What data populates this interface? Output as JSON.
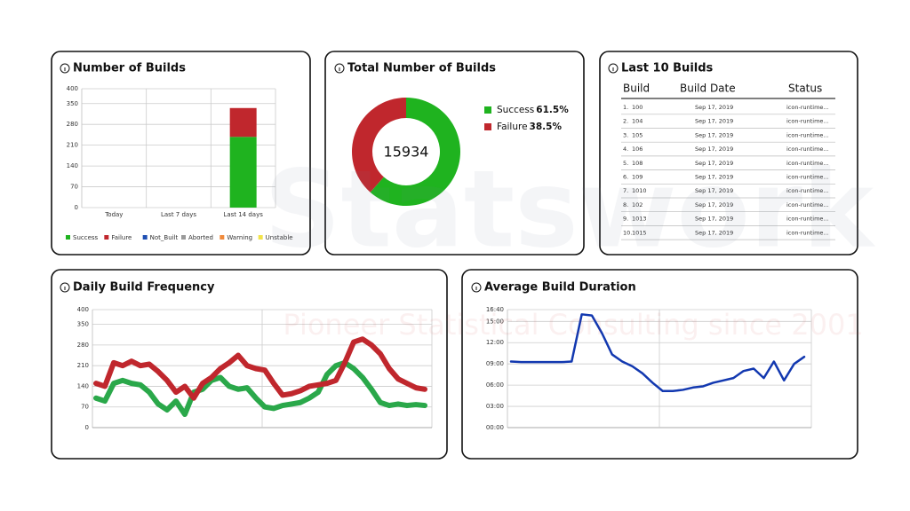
{
  "watermark": {
    "brand": "Statswork",
    "tagline": "Pioneer Statistical Consulting since 2001"
  },
  "chart_data": [
    {
      "type": "stacked_bar",
      "title": "Number of Builds",
      "categories": [
        "Today",
        "Last 7 days",
        "Last 14 days"
      ],
      "series": [
        {
          "name": "Success",
          "color": "#1fb31f",
          "values": [
            0,
            0,
            238
          ]
        },
        {
          "name": "Failure",
          "color": "#c0272d",
          "values": [
            0,
            0,
            97
          ]
        },
        {
          "name": "Not_Built",
          "color": "#1f4fb3",
          "values": [
            0,
            0,
            0
          ]
        },
        {
          "name": "Aborted",
          "color": "#9a9a9a",
          "values": [
            0,
            0,
            0
          ]
        },
        {
          "name": "Warning",
          "color": "#f08a3c",
          "values": [
            0,
            0,
            0
          ]
        },
        {
          "name": "Unstable",
          "color": "#f2e34a",
          "values": [
            0,
            0,
            0
          ]
        }
      ],
      "ylim": [
        0,
        400
      ],
      "yticks": [
        0,
        70,
        140,
        210,
        280,
        350,
        400
      ],
      "grid": true,
      "legend": "bottom"
    },
    {
      "type": "donut",
      "title": "Total Number of Builds",
      "center_label": "15934",
      "categories": [
        "Success",
        "Failure"
      ],
      "values": [
        61.5,
        38.5
      ],
      "value_labels": [
        "61.5%",
        "38.5%"
      ],
      "colors": [
        "#1fb31f",
        "#c0272d"
      ],
      "legend": "right"
    },
    {
      "type": "line",
      "title": "Daily Build Frequency",
      "series": [
        {
          "color": "#c0272d",
          "values": [
            150,
            140,
            220,
            210,
            225,
            210,
            215,
            190,
            160,
            120,
            140,
            100,
            150,
            170,
            200,
            220,
            245,
            210,
            200,
            195,
            150,
            110,
            115,
            125,
            140,
            145,
            150,
            160,
            220,
            290,
            300,
            280,
            250,
            200,
            165,
            150,
            135,
            130
          ]
        },
        {
          "color": "#2aa84a",
          "values": [
            100,
            90,
            150,
            160,
            150,
            145,
            120,
            80,
            60,
            90,
            45,
            120,
            130,
            160,
            170,
            140,
            130,
            135,
            100,
            70,
            65,
            75,
            80,
            85,
            100,
            120,
            180,
            210,
            220,
            200,
            170,
            130,
            85,
            75,
            80,
            75,
            78,
            75
          ]
        }
      ],
      "ylim": [
        0,
        400
      ],
      "yticks": [
        0,
        70,
        140,
        210,
        280,
        350,
        400
      ],
      "grid": true
    },
    {
      "type": "line",
      "title": "Average Build Duration",
      "series": [
        {
          "color": "#1238b0",
          "values": [
            560,
            555,
            555,
            555,
            555,
            555,
            560,
            960,
            950,
            800,
            620,
            560,
            520,
            460,
            380,
            310,
            310,
            320,
            340,
            350,
            380,
            400,
            420,
            480,
            500,
            420,
            560,
            400,
            540,
            600
          ]
        }
      ],
      "ylim": [
        0,
        1000
      ],
      "yticks": [
        {
          "value": 0,
          "label": "00:00"
        },
        {
          "value": 180,
          "label": "03:00"
        },
        {
          "value": 360,
          "label": "06:00"
        },
        {
          "value": 540,
          "label": "09:00"
        },
        {
          "value": 720,
          "label": "12:00"
        },
        {
          "value": 900,
          "label": "15:00"
        },
        {
          "value": 1000,
          "label": "16:40"
        }
      ],
      "grid": true
    }
  ],
  "table": {
    "title": "Last 10 Builds",
    "header": [
      "Build",
      "Build Date",
      "Status"
    ],
    "rows": [
      [
        "1.",
        "100",
        "Sep 17, 2019",
        "icon-runtime..."
      ],
      [
        "2.",
        "104",
        "Sep 17, 2019",
        "icon-runtime..."
      ],
      [
        "3.",
        "105",
        "Sep 17, 2019",
        "icon-runtime..."
      ],
      [
        "4.",
        "106",
        "Sep 17, 2019",
        "icon-runtime..."
      ],
      [
        "5.",
        "108",
        "Sep 17, 2019",
        "icon-runtime..."
      ],
      [
        "6.",
        "109",
        "Sep 17, 2019",
        "icon-runtime..."
      ],
      [
        "7.",
        "1010",
        "Sep 17, 2019",
        "icon-runtime..."
      ],
      [
        "8.",
        "102",
        "Sep 17, 2019",
        "icon-runtime..."
      ],
      [
        "9.",
        "1013",
        "Sep 17, 2019",
        "icon-runtime..."
      ],
      [
        "10.",
        "1015",
        "Sep 17, 2019",
        "icon-runtime..."
      ]
    ]
  }
}
